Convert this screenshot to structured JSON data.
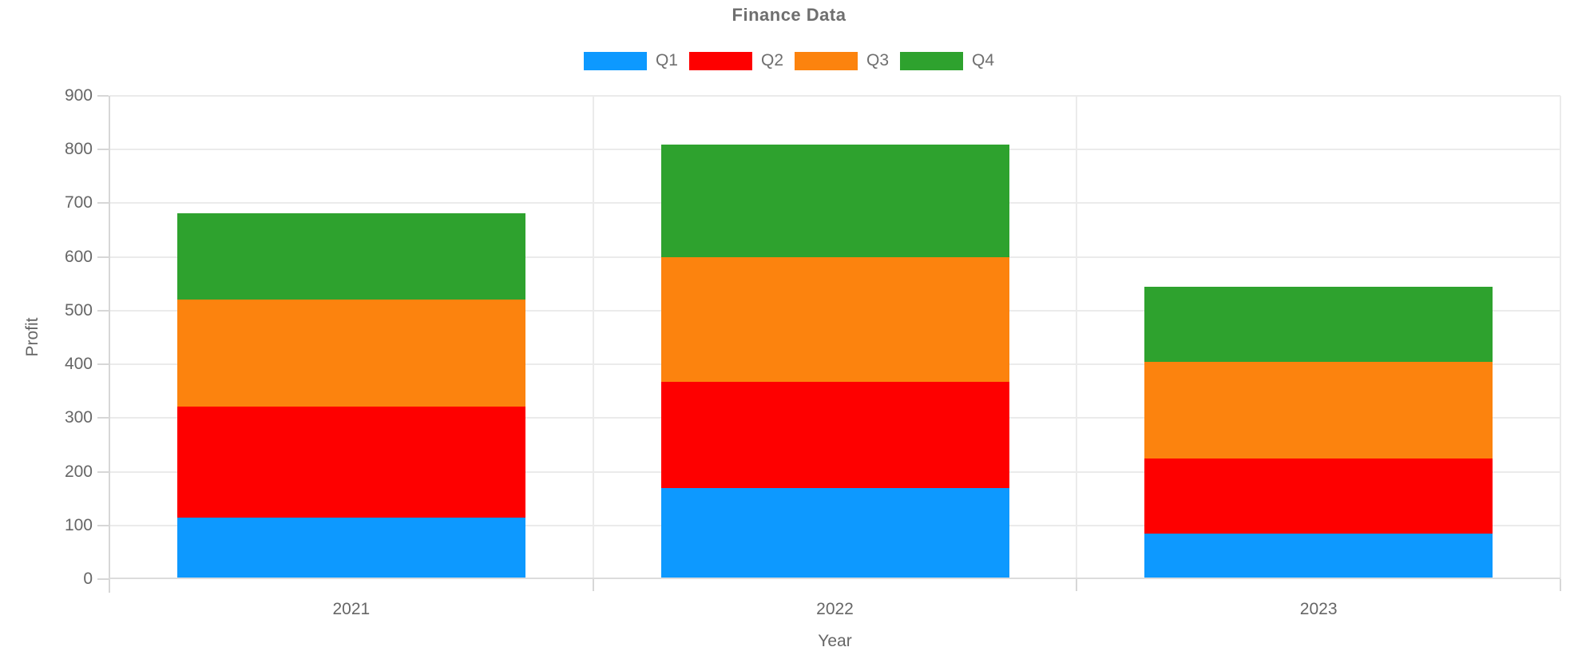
{
  "title": "Finance Data",
  "chart_data": {
    "type": "bar",
    "stacked": true,
    "title": "Finance Data",
    "xlabel": "Year",
    "ylabel": "Profit",
    "categories": [
      "2021",
      "2022",
      "2023"
    ],
    "series": [
      {
        "name": "Q1",
        "color": "#0D99FF",
        "values": [
          115,
          170,
          85
        ]
      },
      {
        "name": "Q2",
        "color": "#FE0000",
        "values": [
          206,
          198,
          140
        ]
      },
      {
        "name": "Q3",
        "color": "#FC830E",
        "values": [
          199,
          232,
          180
        ]
      },
      {
        "name": "Q4",
        "color": "#2EA22E",
        "values": [
          162,
          210,
          140
        ]
      }
    ],
    "stack_totals": [
      682,
      810,
      545
    ],
    "cumulative_tops": {
      "2021": [
        115,
        321,
        520,
        682
      ],
      "2022": [
        170,
        368,
        600,
        810
      ],
      "2023": [
        85,
        225,
        405,
        545
      ]
    },
    "ylim": [
      0,
      900
    ],
    "ytick_interval": 100,
    "ytick_labels": [
      "0",
      "100",
      "200",
      "300",
      "400",
      "500",
      "600",
      "700",
      "800",
      "900"
    ],
    "grid": true,
    "legend_position": "top",
    "bar_width_fraction": 0.72
  },
  "style_colors": {
    "gridline": "#ebebeb",
    "axis_line": "#d7d7d7",
    "tick_text": "#666666",
    "title_text": "#6f6f6f"
  }
}
